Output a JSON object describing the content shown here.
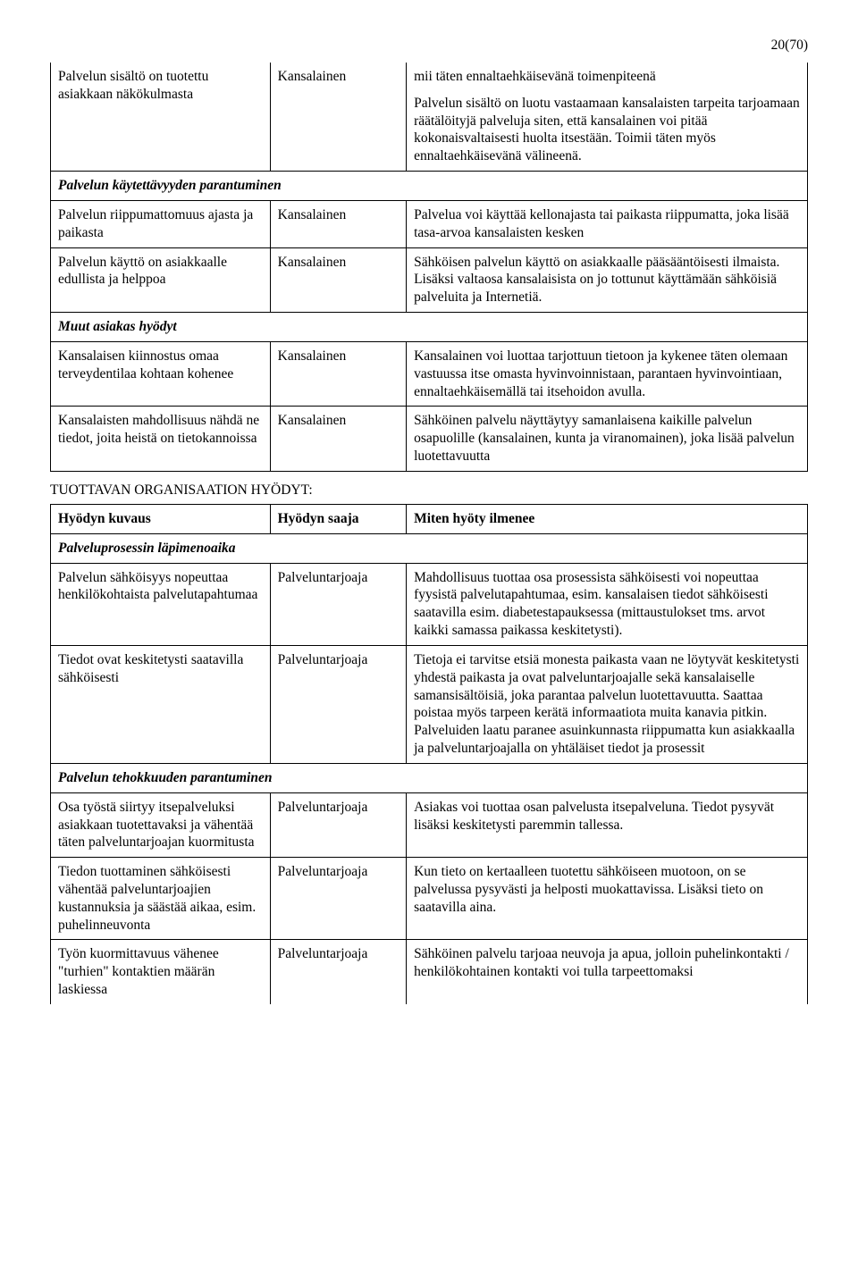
{
  "page_number": "20(70)",
  "upper_table": {
    "rows": [
      {
        "type": "data",
        "top_open": true,
        "col1": "Palvelun sisältö on tuotettu asiakkaan näkökulmasta",
        "col2": "Kansalainen",
        "col3": "mii täten ennaltaehkäisevänä toimenpiteenä\n\nPalvelun sisältö on luotu vastaamaan kansalaisten tarpeita tarjoamaan räätälöityjä palveluja siten, että kansalainen voi pitää kokonaisvaltaisesti huolta itsestään. Toimii täten myös ennaltaehkäisevänä välineenä."
      },
      {
        "type": "section",
        "col1": "Palvelun käytettävyyden parantuminen"
      },
      {
        "type": "data",
        "col1": "Palvelun riippumattomuus ajasta ja paikasta",
        "col2": "Kansalainen",
        "col3": "Palvelua voi käyttää kellonajasta tai paikasta riippumatta, joka lisää tasa-arvoa kansalaisten kesken"
      },
      {
        "type": "data",
        "col1": "Palvelun käyttö on asiakkaalle edullista ja helppoa",
        "col2": "Kansalainen",
        "col3": "Sähköisen palvelun käyttö on asiakkaalle pääsääntöisesti ilmaista. Lisäksi valtaosa kansalaisista on jo tottunut käyttämään sähköisiä palveluita ja Internetiä."
      },
      {
        "type": "section",
        "col1": "Muut asiakas hyödyt"
      },
      {
        "type": "data",
        "col1": "Kansalaisen kiinnostus omaa terveydentilaa kohtaan kohenee",
        "col2": "Kansalainen",
        "col3": "Kansalainen voi luottaa tarjottuun tietoon ja kykenee täten olemaan vastuussa itse omasta hyvinvoinnistaan, parantaen hyvinvointiaan, ennaltaehkäisemällä tai itsehoidon avulla."
      },
      {
        "type": "data",
        "col1": "Kansalaisten mahdollisuus nähdä ne tiedot, joita heistä on tietokannoissa",
        "col2": "Kansalainen",
        "col3": "Sähköinen palvelu näyttäytyy samanlaisena kaikille palvelun osapuolille (kansalainen, kunta ja viranomainen), joka lisää palvelun luotettavuutta"
      }
    ]
  },
  "section_heading": "TUOTTAVAN ORGANISAATION HYÖDYT:",
  "lower_table": {
    "header": {
      "col1": "Hyödyn kuvaus",
      "col2": "Hyödyn saaja",
      "col3": "Miten hyöty ilmenee"
    },
    "rows": [
      {
        "type": "section",
        "col1": "Palveluprosessin läpimenoaika"
      },
      {
        "type": "data",
        "col1": "Palvelun sähköisyys nopeuttaa henkilökohtaista palvelutapahtumaa",
        "col2": "Palveluntarjoaja",
        "col3": "Mahdollisuus tuottaa osa prosessista sähköisesti voi nopeuttaa fyysistä palvelutapahtumaa, esim. kansalaisen tiedot sähköisesti saatavilla esim. diabetestapauksessa (mittaustulokset tms. arvot kaikki samassa paikassa keskitetysti)."
      },
      {
        "type": "data",
        "col1": "Tiedot ovat keskitetysti saatavilla sähköisesti",
        "col2": "Palveluntarjoaja",
        "col3": "Tietoja ei tarvitse etsiä monesta paikasta vaan ne löytyvät keskitetysti yhdestä paikasta ja ovat palveluntarjoajalle sekä kansalaiselle samansisältöisiä, joka parantaa palvelun luotettavuutta. Saattaa poistaa myös tarpeen kerätä informaatiota muita kanavia pitkin. Palveluiden laatu paranee asuinkunnasta riippumatta kun asiakkaalla ja palveluntarjoajalla on yhtäläiset tiedot ja prosessit"
      },
      {
        "type": "section",
        "col1": "Palvelun tehokkuuden parantuminen"
      },
      {
        "type": "data",
        "col1": "Osa työstä siirtyy itsepalveluksi asiakkaan tuotettavaksi ja vähentää täten palveluntarjoajan kuormitusta",
        "col2": "Palveluntarjoaja",
        "col3": "Asiakas voi tuottaa osan palvelusta itsepalveluna. Tiedot pysyvät lisäksi keskitetysti paremmin tallessa."
      },
      {
        "type": "data",
        "col1": "Tiedon tuottaminen sähköisesti vähentää palveluntarjoajien kustannuksia ja säästää aikaa, esim. puhelinneuvonta",
        "col2": "Palveluntarjoaja",
        "col3": "Kun tieto on kertaalleen tuotettu sähköiseen muotoon, on se palvelussa pysyvästi ja helposti muokattavissa. Lisäksi tieto on saatavilla aina."
      },
      {
        "type": "data",
        "bottom_open": true,
        "col1": "Työn kuormittavuus vähenee \"turhien\" kontaktien määrän laskiessa",
        "col2": "Palveluntarjoaja",
        "col3": "Sähköinen palvelu tarjoaa neuvoja ja apua, jolloin puhelinkontakti / henkilökohtainen kontakti voi tulla tarpeettomaksi"
      }
    ]
  }
}
